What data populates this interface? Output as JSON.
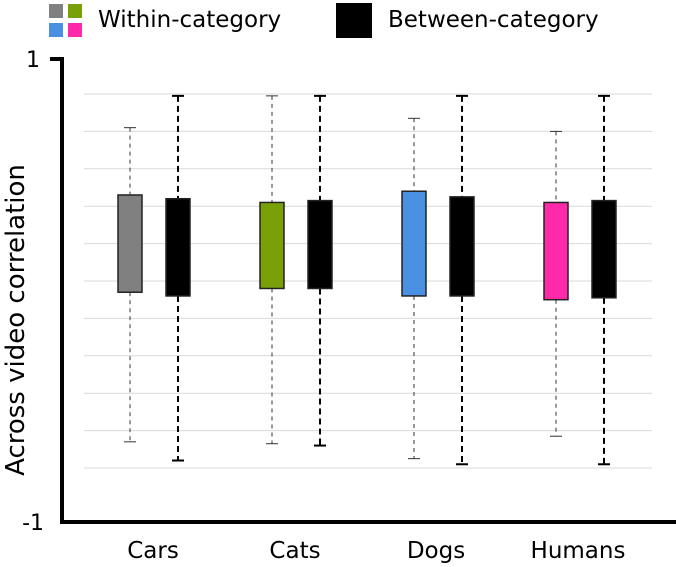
{
  "chart_data": {
    "type": "box",
    "title": "",
    "xlabel": "",
    "ylabel": "Across video correlation",
    "ylim": [
      -1,
      1
    ],
    "y_tick_labels": [
      "1",
      "-1"
    ],
    "grid": true,
    "legend": {
      "placement": "top-left",
      "entries": [
        {
          "label": "Within-category",
          "colors": [
            "#808080",
            "#7aa008",
            "#4a90e2",
            "#ff2aaa"
          ]
        },
        {
          "label": "Between-category",
          "colors": [
            "#000000"
          ]
        }
      ]
    },
    "categories": [
      "Cars",
      "Cats",
      "Dogs",
      "Humans"
    ],
    "series": [
      {
        "name": "Within-category",
        "colors": [
          "#808080",
          "#7aa008",
          "#4a90e2",
          "#ff2aaa"
        ],
        "boxes": [
          {
            "whisker_low": -0.86,
            "q1": -0.06,
            "q3": 0.46,
            "whisker_high": 0.82
          },
          {
            "whisker_low": -0.87,
            "q1": -0.04,
            "q3": 0.42,
            "whisker_high": 0.99
          },
          {
            "whisker_low": -0.95,
            "q1": -0.08,
            "q3": 0.48,
            "whisker_high": 0.87
          },
          {
            "whisker_low": -0.83,
            "q1": -0.1,
            "q3": 0.42,
            "whisker_high": 0.8
          }
        ]
      },
      {
        "name": "Between-category",
        "colors": [
          "#000000"
        ],
        "boxes": [
          {
            "whisker_low": -0.96,
            "q1": -0.08,
            "q3": 0.44,
            "whisker_high": 0.99
          },
          {
            "whisker_low": -0.88,
            "q1": -0.04,
            "q3": 0.43,
            "whisker_high": 0.99
          },
          {
            "whisker_low": -0.98,
            "q1": -0.08,
            "q3": 0.45,
            "whisker_high": 0.99
          },
          {
            "whisker_low": -0.98,
            "q1": -0.09,
            "q3": 0.43,
            "whisker_high": 0.99
          }
        ]
      }
    ]
  }
}
